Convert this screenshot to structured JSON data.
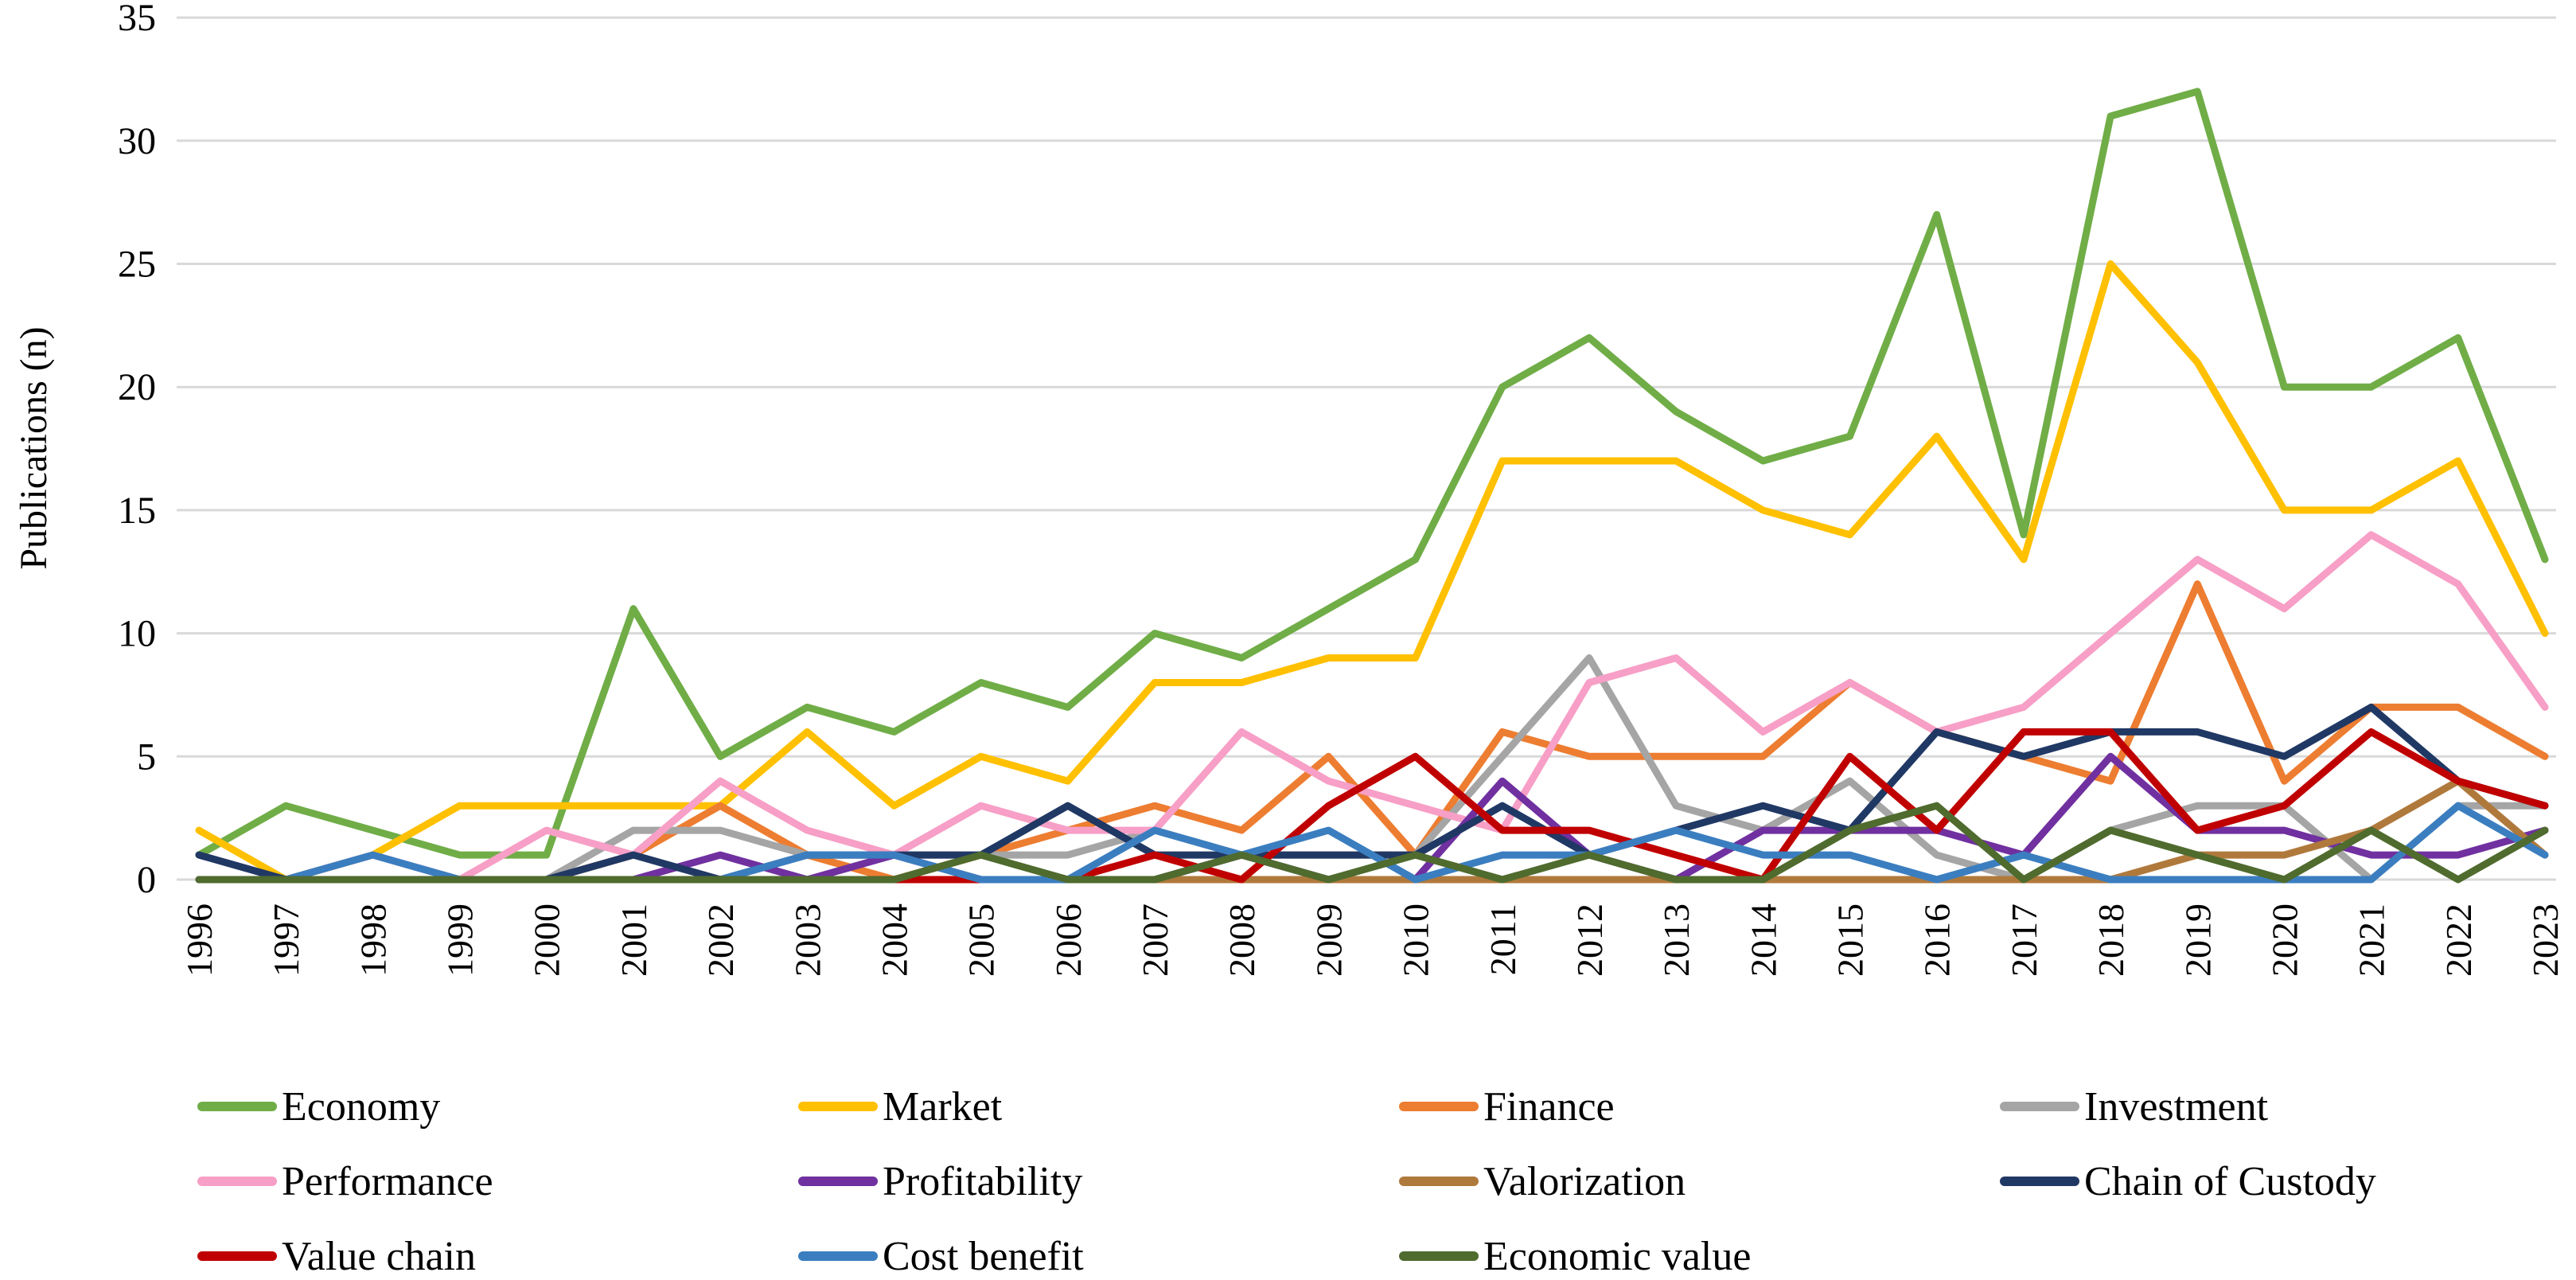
{
  "chart_data": {
    "type": "line",
    "title": "",
    "ylabel": "Publications (n)",
    "xlabel": "",
    "ylim": [
      0,
      35
    ],
    "ytick_step": 5,
    "yticks": [
      0,
      5,
      10,
      15,
      20,
      25,
      30,
      35
    ],
    "grid": true,
    "gridline_color": "#d9d9d9",
    "legend_position": "bottom",
    "legend_columns": 4,
    "categories": [
      1996,
      1997,
      1998,
      1999,
      2000,
      2001,
      2002,
      2003,
      2004,
      2005,
      2006,
      2007,
      2008,
      2009,
      2010,
      2011,
      2012,
      2013,
      2014,
      2015,
      2016,
      2017,
      2018,
      2019,
      2020,
      2021,
      2022,
      2023
    ],
    "series": [
      {
        "name": "Economy",
        "color": "#70AD47",
        "values": [
          1,
          3,
          2,
          1,
          1,
          11,
          5,
          7,
          6,
          8,
          7,
          10,
          9,
          11,
          13,
          20,
          22,
          19,
          17,
          18,
          27,
          14,
          31,
          32,
          20,
          20,
          22,
          13
        ]
      },
      {
        "name": "Market",
        "color": "#FFC000",
        "values": [
          2,
          0,
          1,
          3,
          3,
          3,
          3,
          6,
          3,
          5,
          4,
          8,
          8,
          9,
          9,
          17,
          17,
          17,
          15,
          14,
          18,
          13,
          25,
          21,
          15,
          15,
          17,
          10
        ]
      },
      {
        "name": "Finance",
        "color": "#ED7D31",
        "values": [
          0,
          0,
          0,
          0,
          0,
          1,
          3,
          1,
          0,
          1,
          2,
          3,
          2,
          5,
          1,
          6,
          5,
          5,
          5,
          8,
          6,
          5,
          4,
          12,
          4,
          7,
          7,
          5
        ]
      },
      {
        "name": "Investment",
        "color": "#A5A5A5",
        "values": [
          0,
          0,
          0,
          0,
          0,
          2,
          2,
          1,
          1,
          1,
          1,
          2,
          1,
          1,
          1,
          5,
          9,
          3,
          2,
          4,
          1,
          0,
          2,
          3,
          3,
          0,
          3,
          3
        ]
      },
      {
        "name": "Performance",
        "color": "#F79FC6",
        "values": [
          0,
          0,
          1,
          0,
          2,
          1,
          4,
          2,
          1,
          3,
          2,
          2,
          6,
          4,
          3,
          2,
          8,
          9,
          6,
          8,
          6,
          7,
          10,
          13,
          11,
          14,
          12,
          7
        ]
      },
      {
        "name": "Profitability",
        "color": "#7030A0",
        "values": [
          0,
          0,
          0,
          0,
          0,
          0,
          1,
          0,
          1,
          0,
          0,
          0,
          1,
          0,
          0,
          4,
          1,
          0,
          2,
          2,
          2,
          1,
          5,
          2,
          2,
          1,
          1,
          2
        ]
      },
      {
        "name": "Valorization",
        "color": "#B0793C",
        "values": [
          0,
          0,
          0,
          0,
          0,
          0,
          0,
          0,
          0,
          0,
          0,
          0,
          0,
          0,
          0,
          0,
          0,
          0,
          0,
          0,
          0,
          0,
          0,
          1,
          1,
          2,
          4,
          1
        ]
      },
      {
        "name": "Chain of Custody",
        "color": "#203864",
        "values": [
          1,
          0,
          0,
          0,
          0,
          1,
          0,
          1,
          1,
          1,
          3,
          1,
          1,
          1,
          1,
          3,
          1,
          2,
          3,
          2,
          6,
          5,
          6,
          6,
          5,
          7,
          4,
          3
        ]
      },
      {
        "name": "Value chain",
        "color": "#C00000",
        "values": [
          0,
          0,
          0,
          0,
          0,
          0,
          0,
          0,
          0,
          0,
          0,
          1,
          0,
          3,
          5,
          2,
          2,
          1,
          0,
          5,
          2,
          6,
          6,
          2,
          3,
          6,
          4,
          3
        ]
      },
      {
        "name": "Cost benefit",
        "color": "#3B7EC0",
        "values": [
          0,
          0,
          1,
          0,
          0,
          0,
          0,
          1,
          1,
          0,
          0,
          2,
          1,
          2,
          0,
          1,
          1,
          2,
          1,
          1,
          0,
          1,
          0,
          0,
          0,
          0,
          3,
          1
        ]
      },
      {
        "name": "Economic value",
        "color": "#4F6B2E",
        "values": [
          0,
          0,
          0,
          0,
          0,
          0,
          0,
          0,
          0,
          1,
          0,
          0,
          1,
          0,
          1,
          0,
          1,
          0,
          0,
          2,
          3,
          0,
          2,
          1,
          0,
          2,
          0,
          2
        ]
      }
    ]
  },
  "axis": {
    "y_title": "Publications (n)"
  },
  "layout_text": {
    "note": ""
  }
}
